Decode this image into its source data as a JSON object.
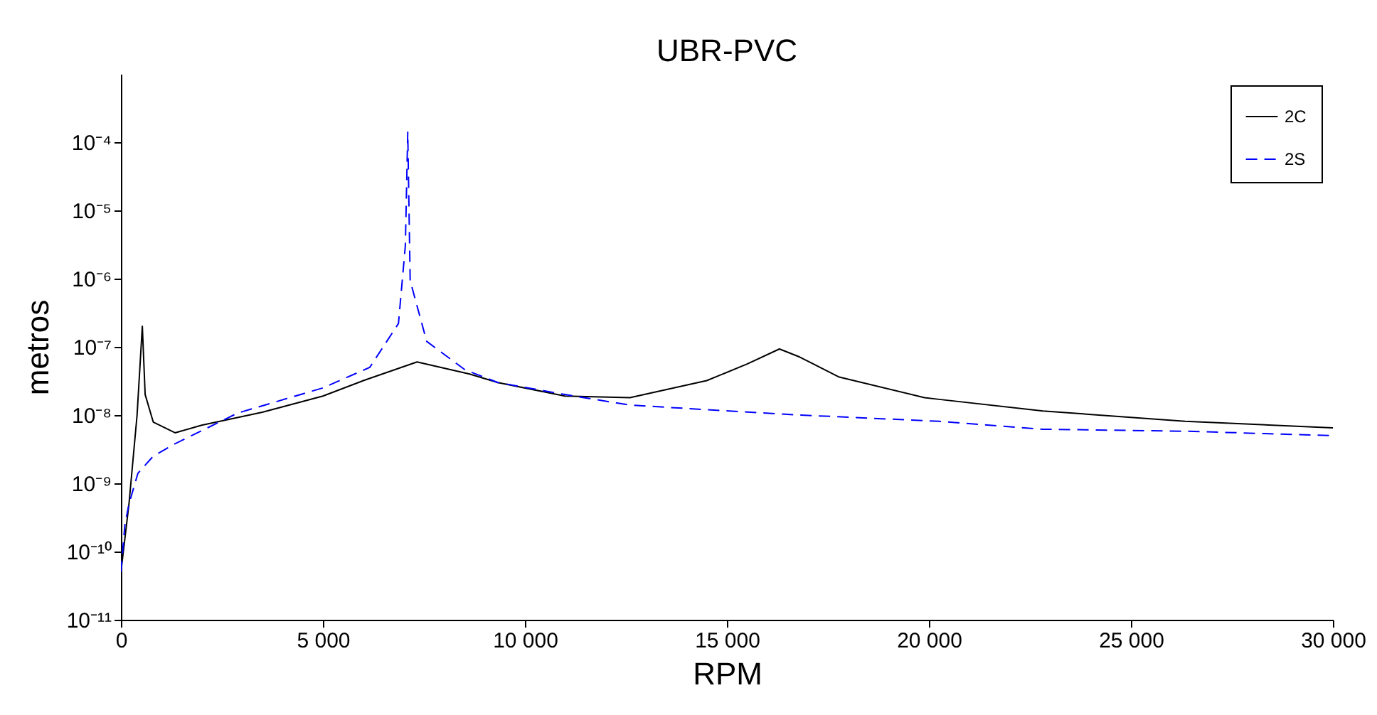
{
  "chart_data": {
    "type": "line",
    "title": "UBR-PVC",
    "xlabel": "RPM",
    "ylabel": "metros",
    "log": "y",
    "grid": false,
    "legend": "top right",
    "xlim": [
      0,
      30000
    ],
    "xticks": [
      0,
      {
        "value": 5000,
        "label": "5 000"
      },
      {
        "value": 10000,
        "label": "10 000"
      },
      {
        "value": 15000,
        "label": "15 000"
      },
      {
        "value": 20000,
        "label": "20 000"
      },
      {
        "value": 25000,
        "label": "25 000"
      },
      {
        "value": 30000,
        "label": "30 000"
      }
    ],
    "ylim": [
      1e-11,
      0.001
    ],
    "yticks": [
      {
        "value": 1e-11,
        "label": "10⁻¹¹"
      },
      {
        "value": 1e-10,
        "label": "10⁻¹⁰"
      },
      {
        "value": 1e-09,
        "label": "10⁻⁹"
      },
      {
        "value": 1e-08,
        "label": "10⁻⁸"
      },
      {
        "value": 1e-07,
        "label": "10⁻⁷"
      },
      {
        "value": 1e-06,
        "label": "10⁻⁶"
      },
      {
        "value": 1e-05,
        "label": "10⁻⁵"
      },
      {
        "value": 0.0001,
        "label": "10⁻⁴"
      }
    ],
    "series": [
      {
        "name": "2C",
        "color": "#000000",
        "line_style": "solid",
        "x": [
          0,
          200,
          400,
          530,
          600,
          800,
          1340,
          2000,
          3500,
          5000,
          6000,
          7330,
          8630,
          9330,
          10990,
          12600,
          14500,
          15500,
          16300,
          16800,
          17780,
          19890,
          20250,
          22820,
          26340,
          30000
        ],
        "values": [
          5e-11,
          5e-10,
          1e-08,
          2e-07,
          2e-08,
          7.9e-09,
          5.5e-09,
          7.1e-09,
          1.1e-08,
          1.9e-08,
          3.2e-08,
          6e-08,
          4e-08,
          3e-08,
          1.9e-08,
          1.8e-08,
          3.2e-08,
          5.6e-08,
          9.3e-08,
          7.1e-08,
          3.6e-08,
          1.8e-08,
          1.7e-08,
          1.15e-08,
          8.1e-09,
          6.5e-09
        ]
      },
      {
        "name": "2S",
        "color": "#0000ff",
        "line_style": "dashed",
        "x": [
          0,
          100,
          200,
          420,
          800,
          1340,
          2890,
          5000,
          6160,
          6870,
          7040,
          7100,
          7160,
          7570,
          8520,
          9330,
          10990,
          12600,
          14500,
          16830,
          20250,
          22820,
          26340,
          30000
        ],
        "values": [
          5e-11,
          2.5e-10,
          5e-10,
          1.4e-09,
          2.5e-09,
          3.8e-09,
          1.07e-08,
          2.5e-08,
          5e-08,
          2.2e-07,
          3e-06,
          0.00014,
          9.3e-07,
          1.2e-07,
          4.6e-08,
          3e-08,
          2e-08,
          1.4e-08,
          1.2e-08,
          1e-08,
          8.1e-09,
          6.2e-09,
          5.8e-09,
          5e-09
        ]
      }
    ]
  }
}
